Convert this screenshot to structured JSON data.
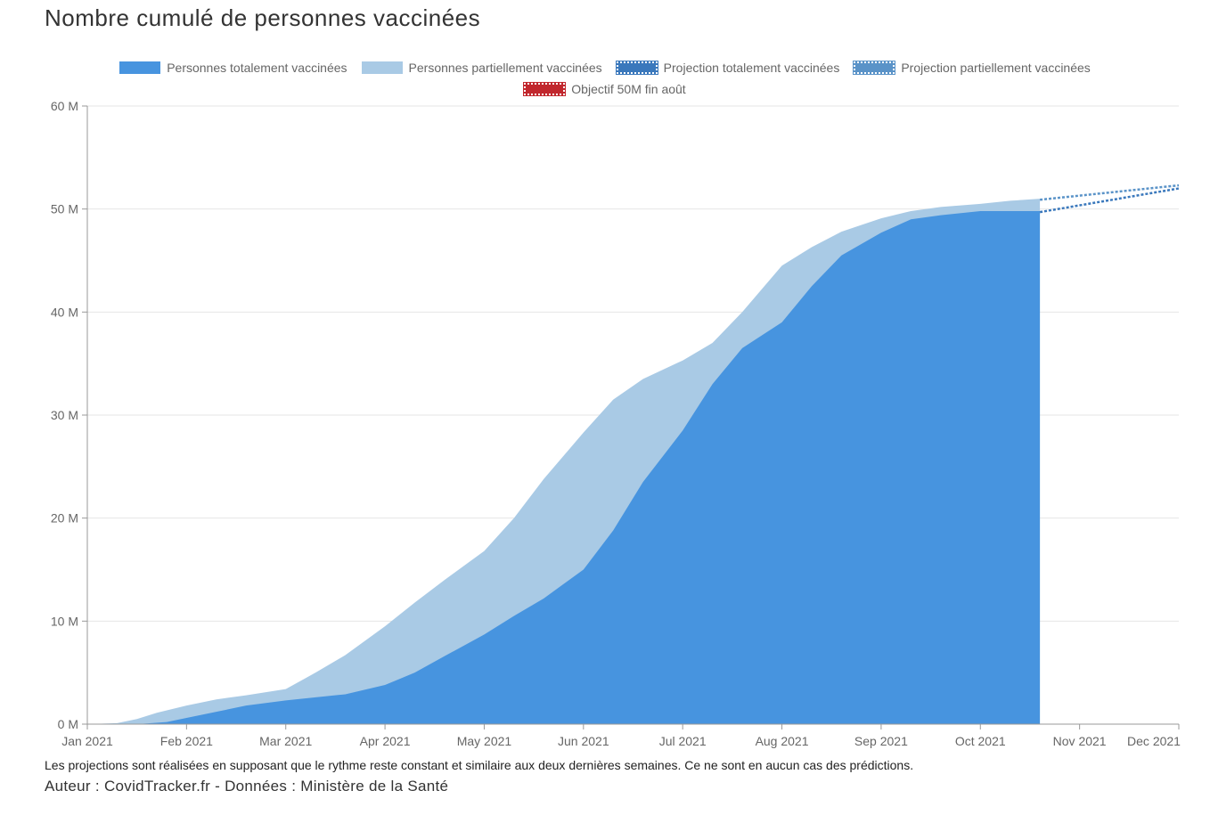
{
  "title": "Nombre cumulé de personnes vaccinées",
  "legend": [
    {
      "label": "Personnes totalement vaccinées",
      "color": "#4794df",
      "style": "solid"
    },
    {
      "label": "Personnes partiellement vaccinées",
      "color": "#a9cae5",
      "style": "solid"
    },
    {
      "label": "Projection totalement vaccinées",
      "color": "#3a78bc",
      "style": "dotted"
    },
    {
      "label": "Projection partiellement vaccinées",
      "color": "#5a93c8",
      "style": "dotted"
    },
    {
      "label": "Objectif 50M fin août",
      "color": "#c1272d",
      "style": "dotted"
    }
  ],
  "footnote": "Les projections sont réalisées en supposant que le rythme reste constant et similaire aux deux dernières semaines. Ce ne sont en aucun cas des prédictions.",
  "author": "Auteur : CovidTracker.fr - Données : Ministère de la Santé",
  "chart_data": {
    "type": "area",
    "title": "Nombre cumulé de personnes vaccinées",
    "x_unit": "months since Jan 1, 2021",
    "xlim": [
      0,
      11
    ],
    "ylim": [
      0,
      60
    ],
    "y_unit": "millions",
    "y_ticks": [
      0,
      10,
      20,
      30,
      40,
      50,
      60
    ],
    "y_tick_labels": [
      "0 M",
      "10 M",
      "20 M",
      "30 M",
      "40 M",
      "50 M",
      "60 M"
    ],
    "x_tick_labels": [
      "Jan 2021",
      "Feb 2021",
      "Mar 2021",
      "Apr 2021",
      "May 2021",
      "Jun 2021",
      "Jul 2021",
      "Aug 2021",
      "Sep 2021",
      "Oct 2021",
      "Nov 2021",
      "Dec 2021"
    ],
    "grid": true,
    "legend_position": "top",
    "series": [
      {
        "name": "Personnes partiellement vaccinées",
        "kind": "area",
        "color": "#a9cae5",
        "x": [
          0,
          0.3,
          0.5,
          0.7,
          1.0,
          1.3,
          1.6,
          2.0,
          2.3,
          2.6,
          3.0,
          3.3,
          3.6,
          4.0,
          4.3,
          4.6,
          5.0,
          5.3,
          5.6,
          6.0,
          6.3,
          6.6,
          7.0,
          7.3,
          7.6,
          8.0,
          8.3,
          8.6,
          9.0,
          9.3,
          9.6
        ],
        "values": [
          0,
          0.1,
          0.5,
          1.1,
          1.8,
          2.4,
          2.8,
          3.4,
          5.0,
          6.7,
          9.5,
          11.8,
          14.0,
          16.8,
          20.0,
          23.8,
          28.3,
          31.5,
          33.5,
          35.3,
          37.0,
          40.0,
          44.5,
          46.3,
          47.8,
          49.1,
          49.8,
          50.2,
          50.5,
          50.8,
          51.0
        ]
      },
      {
        "name": "Personnes totalement vaccinées",
        "kind": "area",
        "color": "#4794df",
        "x": [
          0,
          0.5,
          0.8,
          1.0,
          1.3,
          1.6,
          2.0,
          2.3,
          2.6,
          3.0,
          3.3,
          3.6,
          4.0,
          4.3,
          4.6,
          5.0,
          5.3,
          5.6,
          6.0,
          6.3,
          6.6,
          7.0,
          7.3,
          7.6,
          8.0,
          8.3,
          8.6,
          9.0,
          9.3,
          9.6
        ],
        "values": [
          0,
          0.0,
          0.2,
          0.6,
          1.2,
          1.8,
          2.3,
          2.6,
          2.9,
          3.8,
          5.0,
          6.6,
          8.7,
          10.5,
          12.2,
          15.0,
          18.8,
          23.5,
          28.5,
          33.0,
          36.5,
          39.0,
          42.5,
          45.5,
          47.7,
          49.0,
          49.4,
          49.8,
          49.8,
          49.8
        ]
      },
      {
        "name": "Projection totalement vaccinées",
        "kind": "dotted-line",
        "color": "#3a78bc",
        "x": [
          9.6,
          11.0
        ],
        "values": [
          49.7,
          52.0
        ]
      },
      {
        "name": "Projection partiellement vaccinées",
        "kind": "dotted-line",
        "color": "#5a93c8",
        "x": [
          9.6,
          11.0
        ],
        "values": [
          50.9,
          52.3
        ]
      }
    ]
  }
}
